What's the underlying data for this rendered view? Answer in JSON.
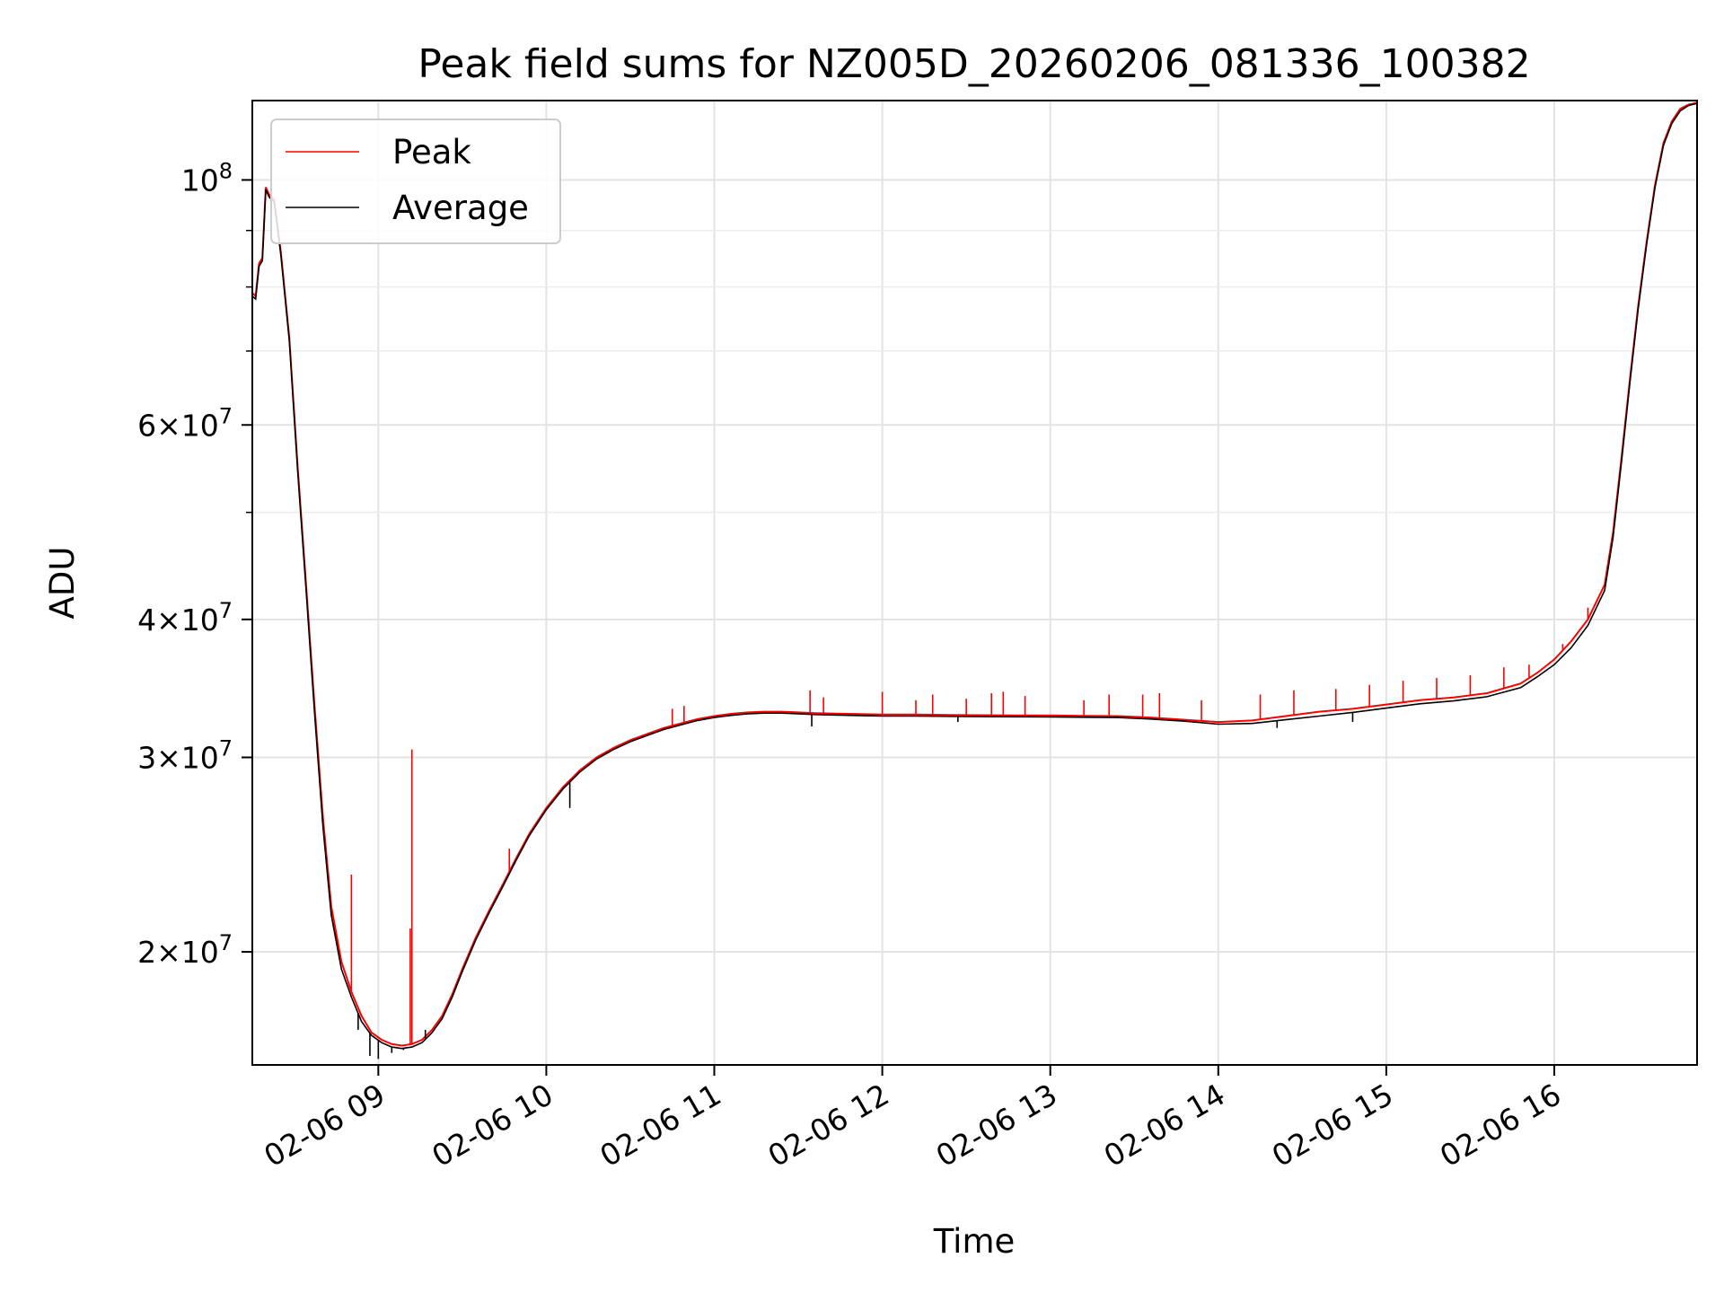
{
  "chart_data": {
    "type": "line",
    "title": "Peak field sums for NZ005D_20260206_081336_100382",
    "xlabel": "Time",
    "ylabel": "ADU",
    "yscale": "log",
    "xlim": [
      8.25,
      16.85
    ],
    "ylim": [
      15800000,
      118000000
    ],
    "grid": true,
    "legend_location": "upper-left",
    "x_ticks": [
      {
        "value": 9,
        "label": "02-06 09"
      },
      {
        "value": 10,
        "label": "02-06 10"
      },
      {
        "value": 11,
        "label": "02-06 11"
      },
      {
        "value": 12,
        "label": "02-06 12"
      },
      {
        "value": 13,
        "label": "02-06 13"
      },
      {
        "value": 14,
        "label": "02-06 14"
      },
      {
        "value": 15,
        "label": "02-06 15"
      },
      {
        "value": 16,
        "label": "02-06 16"
      }
    ],
    "y_ticks_major": [
      {
        "value": 100000000,
        "base": "10",
        "exp": "8",
        "mant": ""
      },
      {
        "value": 60000000,
        "base": "10",
        "exp": "7",
        "mant": "6"
      },
      {
        "value": 40000000,
        "base": "10",
        "exp": "7",
        "mant": "4"
      },
      {
        "value": 30000000,
        "base": "10",
        "exp": "7",
        "mant": "3"
      },
      {
        "value": 20000000,
        "base": "10",
        "exp": "7",
        "mant": "2"
      }
    ],
    "y_ticks_minor": [
      90000000,
      80000000,
      70000000,
      50000000
    ],
    "x_unit": "hour of day (2026-02-06)",
    "series": [
      {
        "name": "Peak",
        "color": "#ff0000",
        "x": [
          8.25,
          8.27,
          8.29,
          8.31,
          8.33,
          8.35,
          8.38,
          8.42,
          8.47,
          8.52,
          8.57,
          8.62,
          8.67,
          8.72,
          8.78,
          8.84,
          8.9,
          8.96,
          9.02,
          9.08,
          9.14,
          9.2,
          9.26,
          9.32,
          9.38,
          9.44,
          9.5,
          9.58,
          9.66,
          9.74,
          9.82,
          9.9,
          10.0,
          10.1,
          10.2,
          10.3,
          10.4,
          10.5,
          10.6,
          10.7,
          10.8,
          10.9,
          11.0,
          11.1,
          11.2,
          11.3,
          11.4,
          11.5,
          11.6,
          11.8,
          12.0,
          12.2,
          12.4,
          12.6,
          12.8,
          13.0,
          13.2,
          13.4,
          13.6,
          13.8,
          14.0,
          14.2,
          14.4,
          14.6,
          14.8,
          15.0,
          15.2,
          15.4,
          15.6,
          15.8,
          15.9,
          16.0,
          16.1,
          16.2,
          16.3,
          16.35,
          16.4,
          16.45,
          16.5,
          16.55,
          16.6,
          16.65,
          16.7,
          16.75,
          16.8,
          16.85
        ],
        "y": [
          79000000,
          78500000,
          84000000,
          85000000,
          98500000,
          97000000,
          96000000,
          86000000,
          72000000,
          55000000,
          43000000,
          33500000,
          26500000,
          22000000,
          19600000,
          18400000,
          17500000,
          16900000,
          16650000,
          16500000,
          16450000,
          16500000,
          16650000,
          17000000,
          17500000,
          18300000,
          19300000,
          20600000,
          21800000,
          23000000,
          24300000,
          25600000,
          27000000,
          28200000,
          29200000,
          30000000,
          30600000,
          31100000,
          31500000,
          31900000,
          32200000,
          32500000,
          32700000,
          32850000,
          32950000,
          33000000,
          33000000,
          32950000,
          32900000,
          32850000,
          32800000,
          32800000,
          32780000,
          32760000,
          32750000,
          32740000,
          32720000,
          32700000,
          32600000,
          32450000,
          32300000,
          32400000,
          32700000,
          33000000,
          33200000,
          33500000,
          33800000,
          34000000,
          34300000,
          35000000,
          35800000,
          36800000,
          38200000,
          40000000,
          43000000,
          48000000,
          56000000,
          66000000,
          77000000,
          88000000,
          99000000,
          108000000,
          113000000,
          116000000,
          117000000,
          117500000
        ]
      },
      {
        "name": "Average",
        "color": "#000000",
        "x": [
          8.25,
          8.27,
          8.29,
          8.31,
          8.33,
          8.35,
          8.38,
          8.42,
          8.47,
          8.52,
          8.57,
          8.62,
          8.67,
          8.72,
          8.78,
          8.84,
          8.9,
          8.96,
          9.02,
          9.08,
          9.14,
          9.2,
          9.26,
          9.32,
          9.38,
          9.44,
          9.5,
          9.58,
          9.66,
          9.74,
          9.82,
          9.9,
          10.0,
          10.1,
          10.2,
          10.3,
          10.4,
          10.5,
          10.6,
          10.7,
          10.8,
          10.9,
          11.0,
          11.1,
          11.2,
          11.3,
          11.4,
          11.5,
          11.6,
          11.8,
          12.0,
          12.2,
          12.4,
          12.6,
          12.8,
          13.0,
          13.2,
          13.4,
          13.6,
          13.8,
          14.0,
          14.2,
          14.4,
          14.6,
          14.8,
          15.0,
          15.2,
          15.4,
          15.6,
          15.8,
          15.9,
          16.0,
          16.1,
          16.2,
          16.3,
          16.35,
          16.4,
          16.45,
          16.5,
          16.55,
          16.6,
          16.65,
          16.7,
          16.75,
          16.8,
          16.85
        ],
        "y": [
          78500000,
          78000000,
          83500000,
          84500000,
          98000000,
          96500000,
          95500000,
          85500000,
          71500000,
          54500000,
          42500000,
          33000000,
          26000000,
          21600000,
          19300000,
          18200000,
          17300000,
          16800000,
          16550000,
          16400000,
          16350000,
          16400000,
          16550000,
          16900000,
          17400000,
          18200000,
          19200000,
          20500000,
          21700000,
          22900000,
          24200000,
          25500000,
          26900000,
          28100000,
          29100000,
          29900000,
          30500000,
          31000000,
          31400000,
          31800000,
          32100000,
          32400000,
          32600000,
          32750000,
          32850000,
          32900000,
          32900000,
          32850000,
          32800000,
          32750000,
          32700000,
          32700000,
          32680000,
          32660000,
          32650000,
          32640000,
          32620000,
          32600000,
          32500000,
          32350000,
          32150000,
          32200000,
          32450000,
          32700000,
          32950000,
          33250000,
          33550000,
          33750000,
          34050000,
          34700000,
          35500000,
          36400000,
          37700000,
          39500000,
          42500000,
          47500000,
          55500000,
          65500000,
          76500000,
          87500000,
          98500000,
          107500000,
          112500000,
          115500000,
          116800000,
          117300000
        ]
      }
    ],
    "peak_spikes": [
      {
        "x": 8.84,
        "y": 23500000
      },
      {
        "x": 9.2,
        "y": 30500000
      },
      {
        "x": 9.19,
        "y": 21000000
      },
      {
        "x": 9.78,
        "y": 24800000
      },
      {
        "x": 10.75,
        "y": 33200000
      },
      {
        "x": 10.82,
        "y": 33400000
      },
      {
        "x": 11.57,
        "y": 34500000
      },
      {
        "x": 11.65,
        "y": 34000000
      },
      {
        "x": 12.0,
        "y": 34400000
      },
      {
        "x": 12.2,
        "y": 33800000
      },
      {
        "x": 12.3,
        "y": 34200000
      },
      {
        "x": 12.5,
        "y": 33900000
      },
      {
        "x": 12.65,
        "y": 34300000
      },
      {
        "x": 12.72,
        "y": 34400000
      },
      {
        "x": 12.85,
        "y": 34100000
      },
      {
        "x": 13.2,
        "y": 33800000
      },
      {
        "x": 13.35,
        "y": 34200000
      },
      {
        "x": 13.55,
        "y": 34200000
      },
      {
        "x": 13.65,
        "y": 34300000
      },
      {
        "x": 13.9,
        "y": 33800000
      },
      {
        "x": 14.25,
        "y": 34200000
      },
      {
        "x": 14.45,
        "y": 34500000
      },
      {
        "x": 14.7,
        "y": 34600000
      },
      {
        "x": 14.9,
        "y": 34900000
      },
      {
        "x": 15.1,
        "y": 35200000
      },
      {
        "x": 15.3,
        "y": 35400000
      },
      {
        "x": 15.5,
        "y": 35600000
      },
      {
        "x": 15.7,
        "y": 36200000
      },
      {
        "x": 15.85,
        "y": 36400000
      },
      {
        "x": 16.05,
        "y": 38000000
      },
      {
        "x": 16.2,
        "y": 41000000
      }
    ],
    "average_dips": [
      {
        "x": 8.88,
        "y": 17000000
      },
      {
        "x": 8.95,
        "y": 16100000
      },
      {
        "x": 9.0,
        "y": 16000000
      },
      {
        "x": 9.08,
        "y": 16200000
      },
      {
        "x": 9.15,
        "y": 16300000
      },
      {
        "x": 9.28,
        "y": 17000000
      },
      {
        "x": 10.14,
        "y": 27000000
      },
      {
        "x": 11.58,
        "y": 32000000
      },
      {
        "x": 12.45,
        "y": 32300000
      },
      {
        "x": 14.35,
        "y": 31900000
      },
      {
        "x": 14.8,
        "y": 32300000
      }
    ]
  }
}
